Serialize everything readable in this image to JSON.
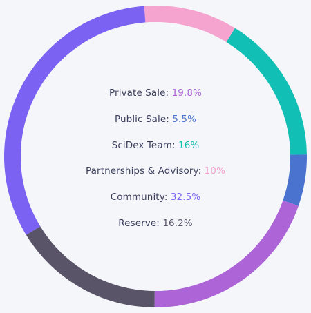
{
  "chart_data": {
    "type": "pie",
    "subtype": "donut",
    "title": "",
    "label_color": "#3b3f5c",
    "background": "#f5f6fa",
    "slices": [
      {
        "label": "Private Sale",
        "value": 19.8,
        "value_text": "19.8%",
        "color": "#ad64d6"
      },
      {
        "label": "Public Sale",
        "value": 5.5,
        "value_text": "5.5%",
        "color": "#4a73cf"
      },
      {
        "label": "SciDex Team",
        "value": 16,
        "value_text": "16%",
        "color": "#12bfb5"
      },
      {
        "label": "Partnerships & Advisory",
        "value": 10,
        "value_text": "10%",
        "color": "#f5a3cf"
      },
      {
        "label": "Community",
        "value": 32.5,
        "value_text": "32.5%",
        "color": "#7b62f2"
      },
      {
        "label": "Reserve",
        "value": 16.2,
        "value_text": "16.2%",
        "color": "#5a5468"
      }
    ]
  }
}
